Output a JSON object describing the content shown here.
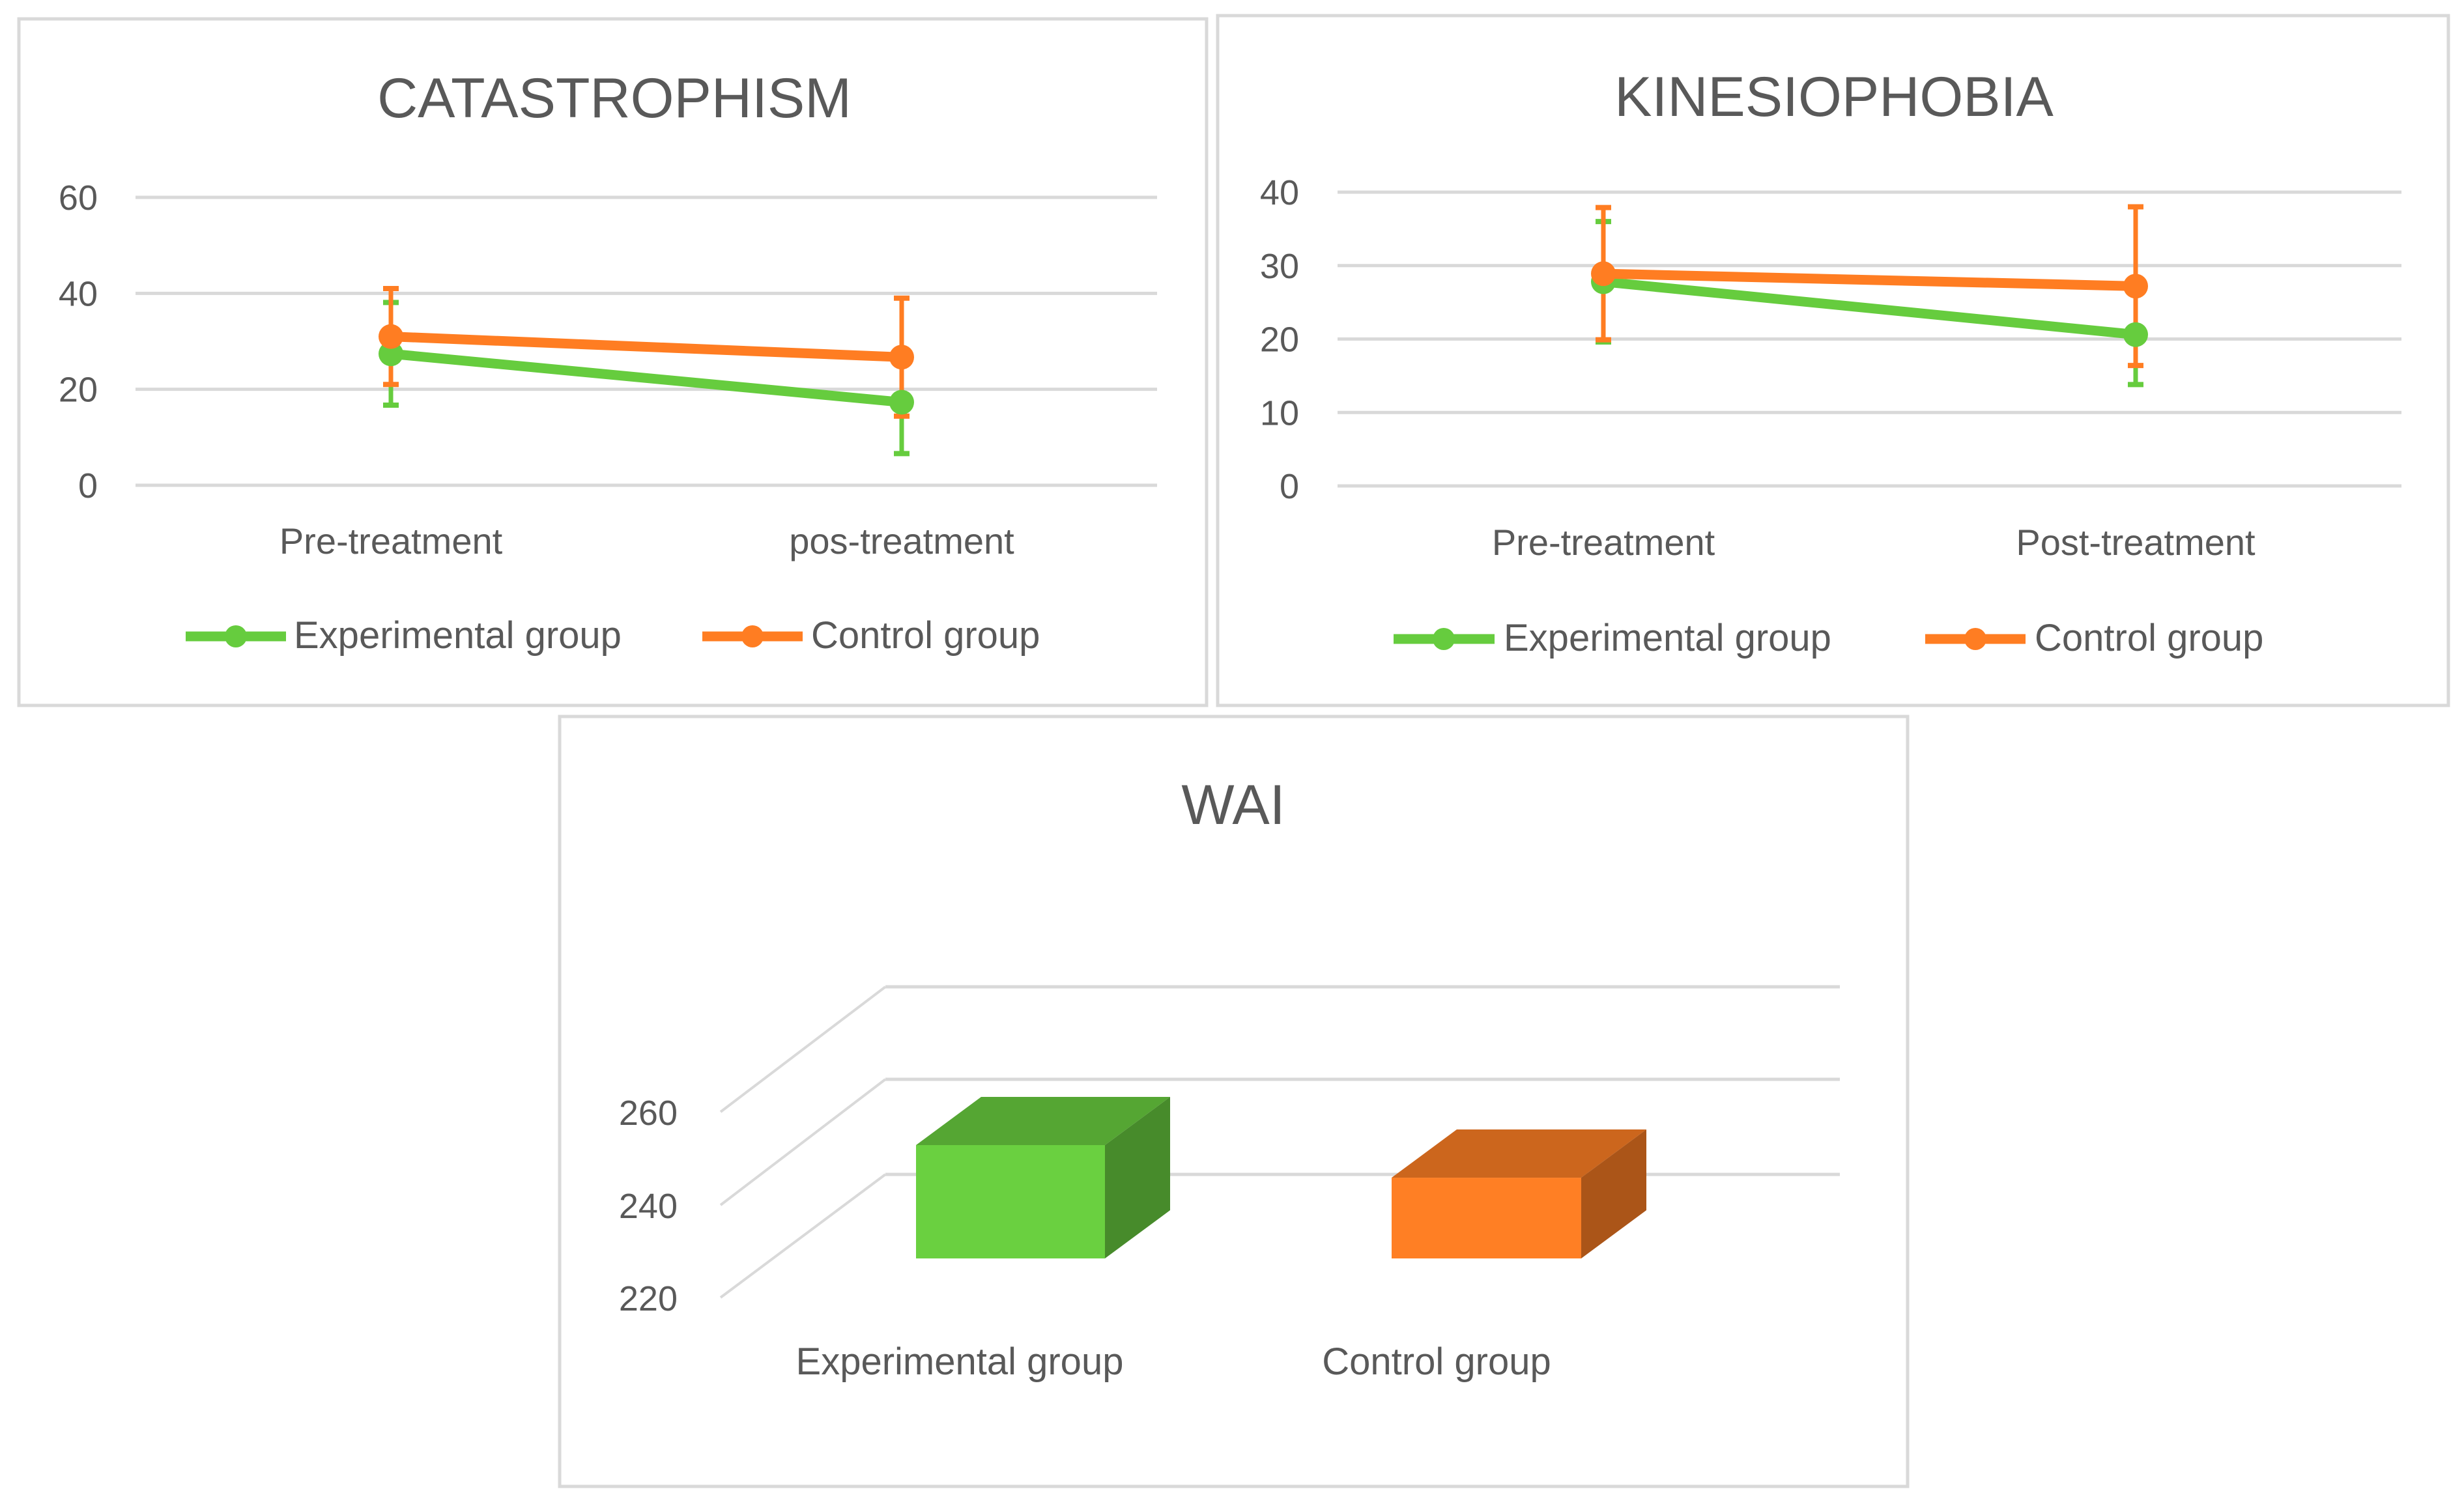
{
  "chart_data": [
    {
      "type": "line",
      "title": "CATASTROPHISM",
      "categories": [
        "Pre-treatment",
        "pos-treatment"
      ],
      "ylim": [
        0,
        60
      ],
      "yticks": [
        "0",
        "20",
        "40",
        "60"
      ],
      "grid": true,
      "legend_position": "bottom",
      "series": [
        {
          "name": "Experimental group",
          "color": "#66CC3E",
          "values": [
            27.4,
            17.3
          ],
          "error": [
            10.7,
            10.7
          ]
        },
        {
          "name": "Control group",
          "color": "#FF7D22",
          "values": [
            31.0,
            26.7
          ],
          "error": [
            10.0,
            12.3
          ]
        }
      ]
    },
    {
      "type": "line",
      "title": "KINESIOPHOBIA",
      "categories": [
        "Pre-treatment",
        "Post-treatment"
      ],
      "ylim": [
        0,
        40
      ],
      "yticks": [
        "0",
        "10",
        "20",
        "30",
        "40"
      ],
      "grid": true,
      "legend_position": "bottom",
      "series": [
        {
          "name": "Experimental group",
          "color": "#66CC3E",
          "values": [
            27.8,
            20.6
          ],
          "error": [
            8.2,
            6.8
          ]
        },
        {
          "name": "Control group",
          "color": "#FF7D22",
          "values": [
            28.9,
            27.2
          ],
          "error": [
            9.0,
            10.8
          ]
        }
      ]
    },
    {
      "type": "bar",
      "title": "WAI",
      "categories": [
        "Experimental group",
        "Control group"
      ],
      "values": [
        250,
        243
      ],
      "colors": [
        "#6AD040",
        "#FF7F24"
      ],
      "ylim": [
        220,
        260
      ],
      "yticks": [
        "220",
        "240",
        "260"
      ],
      "grid": true,
      "style": "3d"
    }
  ]
}
